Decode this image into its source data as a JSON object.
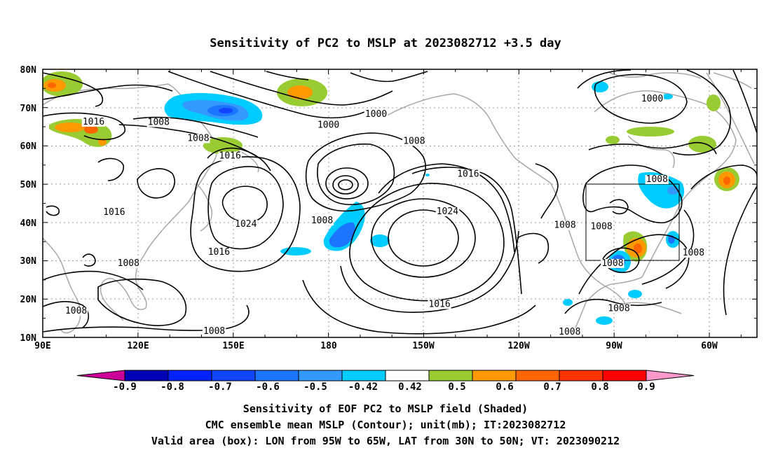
{
  "title": "Sensitivity of PC2 to MSLP at 2023082712 +3.5 day",
  "lat_labels": [
    "80N",
    "70N",
    "60N",
    "50N",
    "40N",
    "30N",
    "20N",
    "10N"
  ],
  "lon_labels": [
    "90E",
    "120E",
    "150E",
    "180",
    "150W",
    "120W",
    "90W",
    "60W"
  ],
  "contour_labels": [
    {
      "text": "1000",
      "lon": 195,
      "lat": 68.3
    },
    {
      "text": "1000",
      "lon": 180,
      "lat": 65.5
    },
    {
      "text": "1000",
      "lon": 282,
      "lat": 72.3
    },
    {
      "text": "1008",
      "lon": 207,
      "lat": 61.3
    },
    {
      "text": "1008",
      "lon": 126.5,
      "lat": 66.2
    },
    {
      "text": "1008",
      "lon": 139,
      "lat": 62
    },
    {
      "text": "1008",
      "lon": 178,
      "lat": 40.5
    },
    {
      "text": "1008",
      "lon": 254.5,
      "lat": 39.3
    },
    {
      "text": "1008",
      "lon": 266,
      "lat": 39
    },
    {
      "text": "1008",
      "lon": 283.5,
      "lat": 51.3
    },
    {
      "text": "1008",
      "lon": 295,
      "lat": 32.1
    },
    {
      "text": "1008",
      "lon": 269.5,
      "lat": 29.4
    },
    {
      "text": "1008",
      "lon": 271.5,
      "lat": 17.6
    },
    {
      "text": "1008",
      "lon": 256,
      "lat": 11.5
    },
    {
      "text": "1008",
      "lon": 117,
      "lat": 29.4
    },
    {
      "text": "1008",
      "lon": 100.5,
      "lat": 16.9
    },
    {
      "text": "1008",
      "lon": 144,
      "lat": 11.6
    },
    {
      "text": "1016",
      "lon": 106,
      "lat": 66.3
    },
    {
      "text": "1016",
      "lon": 149,
      "lat": 57.4
    },
    {
      "text": "1016",
      "lon": 112.5,
      "lat": 42.7
    },
    {
      "text": "1016",
      "lon": 145.5,
      "lat": 32.3
    },
    {
      "text": "1016",
      "lon": 224,
      "lat": 52.7
    },
    {
      "text": "1016",
      "lon": 215,
      "lat": 18.7
    },
    {
      "text": "1024",
      "lon": 154,
      "lat": 39.6
    },
    {
      "text": "1024",
      "lon": 217.5,
      "lat": 42.9
    }
  ],
  "shading_levels": [
    "-0.9",
    "-0.8",
    "-0.7",
    "-0.6",
    "-0.5",
    "-0.42",
    "0.42",
    "0.5",
    "0.6",
    "0.7",
    "0.8",
    "0.9"
  ],
  "shading_colors": [
    "#cc0099",
    "#0000b4",
    "#0022ff",
    "#1144ff",
    "#1c75ff",
    "#3399ff",
    "#00ccff",
    "#ffffff",
    "#99cc33",
    "#ff9900",
    "#ff6600",
    "#ff3300",
    "#ff0000",
    "#ff99cc"
  ],
  "valid_box": {
    "lon_min": 265,
    "lon_max": 295,
    "lat_min": 30,
    "lat_max": 50
  },
  "caption": [
    "Sensitivity of EOF PC2 to MSLP field (Shaded)",
    "CMC ensemble mean MSLP (Contour); unit(mb); IT:2023082712",
    "Valid area (box): LON from 95W to 65W, LAT from 30N to 50N; VT: 2023090212"
  ]
}
